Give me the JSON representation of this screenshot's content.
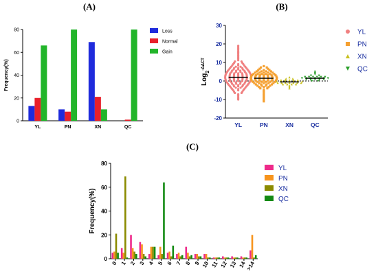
{
  "panels": {
    "a": "(A)",
    "b": "(B)",
    "c": "(C)"
  },
  "chart_data": [
    {
      "type": "bar",
      "ylabel": "Frequency(%)",
      "ylim": [
        0,
        80
      ],
      "yticks": [
        "0",
        "20",
        "40",
        "60",
        "80"
      ],
      "categories": [
        "YL",
        "PN",
        "XN",
        "QC"
      ],
      "series": [
        {
          "name": "Loss",
          "color": "#1f2bdc",
          "values": [
            13,
            10,
            69,
            0
          ]
        },
        {
          "name": "Normal",
          "color": "#e8202a",
          "values": [
            20,
            8,
            21,
            1
          ]
        },
        {
          "name": "Gain",
          "color": "#22b52a",
          "values": [
            66,
            80,
            10,
            80
          ]
        }
      ],
      "legend": "top-right"
    },
    {
      "type": "scatter",
      "ylabel_main": "Log",
      "ylabel_sub": "2",
      "ylabel_sup": "-ΔΔCT",
      "ylim": [
        -20,
        30
      ],
      "yticks": [
        "-20",
        "-10",
        "0",
        "10",
        "20",
        "30"
      ],
      "categories": [
        "YL",
        "PN",
        "XN",
        "QC"
      ],
      "series": [
        {
          "name": "YL",
          "marker": "circle",
          "color": "#f08080",
          "median": 2,
          "min": -10,
          "max": 19
        },
        {
          "name": "PN",
          "marker": "square",
          "color": "#f5a030",
          "median": 1.5,
          "min": -11,
          "max": 8
        },
        {
          "name": "XN",
          "marker": "triangle-up",
          "color": "#c8c020",
          "median": -0.5,
          "min": -4,
          "max": 2
        },
        {
          "name": "QC",
          "marker": "triangle-down",
          "color": "#2ca02c",
          "median": 1.5,
          "min": 0,
          "max": 5
        }
      ],
      "reference_line": 0,
      "legend": "right"
    },
    {
      "type": "bar",
      "ylabel": "Frequency(%)",
      "ylim": [
        0,
        80
      ],
      "yticks": [
        "0",
        "20",
        "40",
        "60",
        "80"
      ],
      "categories": [
        "0",
        "1",
        "2",
        "3",
        "4",
        "5",
        "6",
        "7",
        "8",
        "9",
        "10",
        "11",
        "12",
        "13",
        "14",
        ">14"
      ],
      "series": [
        {
          "name": "YL",
          "color": "#ee2a8a",
          "values": [
            5,
            9,
            20,
            14,
            4,
            3,
            5,
            4,
            10,
            4,
            4,
            1,
            2,
            2,
            2,
            7
          ]
        },
        {
          "name": "PN",
          "color": "#f7941d",
          "values": [
            6,
            5,
            9,
            12,
            10,
            10,
            6,
            5,
            5,
            4,
            4,
            1,
            1,
            1,
            1,
            20
          ]
        },
        {
          "name": "XN",
          "color": "#8b8b00",
          "values": [
            21,
            69,
            6,
            4,
            10,
            4,
            2,
            2,
            2,
            2,
            1,
            1,
            1,
            1,
            1,
            1
          ]
        },
        {
          "name": "QC",
          "color": "#138a13",
          "values": [
            5,
            1,
            4,
            2,
            10,
            64,
            11,
            3,
            3,
            2,
            1,
            1,
            1,
            1,
            1,
            3
          ]
        }
      ],
      "legend": "top-right"
    }
  ]
}
